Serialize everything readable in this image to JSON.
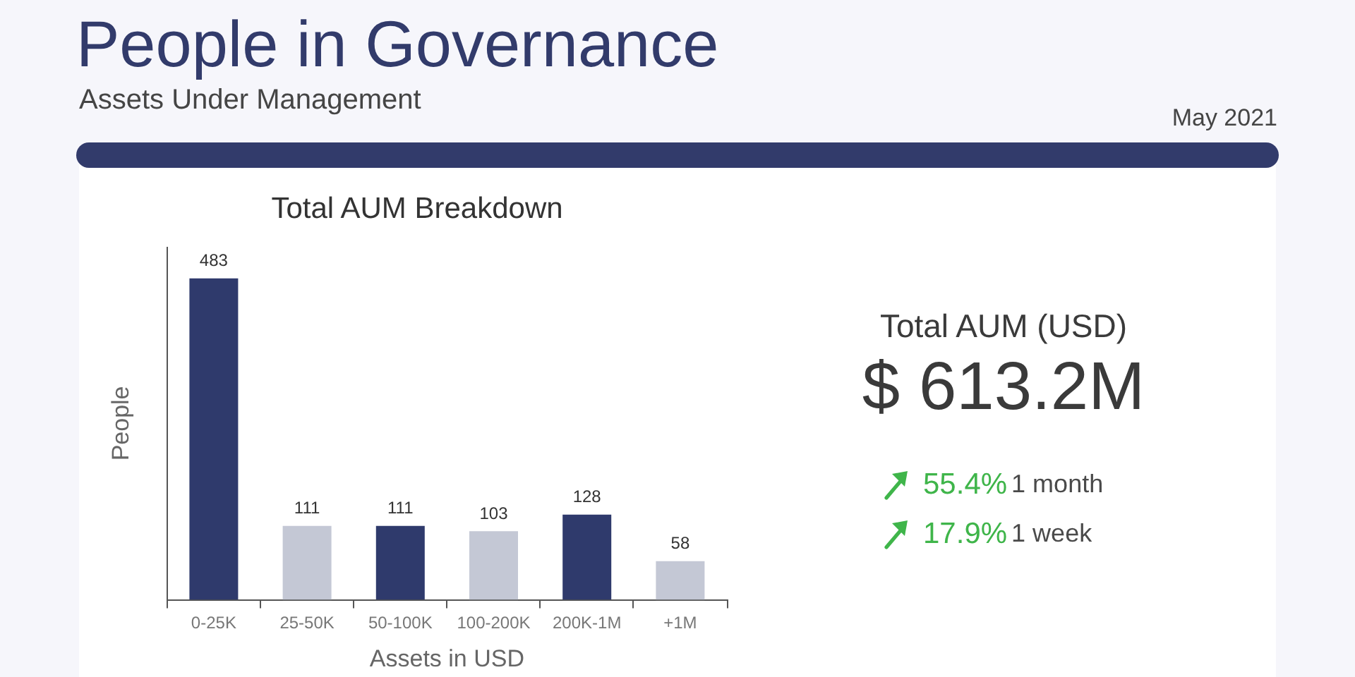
{
  "chart_data": [
    {
      "type": "other",
      "title": "People in Governance",
      "subtitle": "Assets Under Management",
      "annotations": [
        "May 2021"
      ]
    },
    {
      "type": "bar",
      "title": "Total AUM Breakdown",
      "xlabel": "Assets in USD",
      "ylabel": "People",
      "categories": [
        "0-25K",
        "25-50K",
        "50-100K",
        "100-200K",
        "200K-1M",
        "+1M"
      ],
      "values": [
        483,
        111,
        111,
        103,
        128,
        58
      ],
      "colors": [
        "#2f3a6c",
        "#c4c8d5",
        "#2f3a6c",
        "#c4c8d5",
        "#2f3a6c",
        "#c4c8d5"
      ],
      "ylim": [
        0,
        530
      ],
      "tick_labels": "x",
      "data_labels": true
    },
    {
      "type": "other",
      "title": "Total AUM (USD)",
      "annotations": [
        "$ 613.2M",
        "55.4%",
        "1 month",
        "17.9%",
        "1 week"
      ]
    }
  ]
}
